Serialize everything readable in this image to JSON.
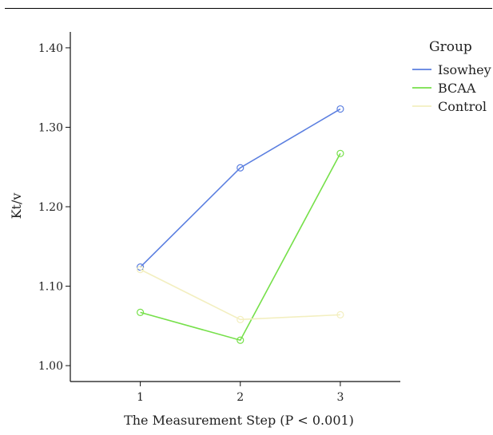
{
  "chart_data": {
    "type": "line",
    "x": [
      1,
      2,
      3
    ],
    "xlabel": "The Measurement Step (P < 0.001)",
    "ylabel": "Kt/v",
    "xlim": [
      0.3,
      3.6
    ],
    "ylim": [
      0.98,
      1.42
    ],
    "yticks": [
      "1.00",
      "1.10",
      "1.20",
      "1.30",
      "1.40"
    ],
    "ytick_values": [
      1.0,
      1.1,
      1.2,
      1.3,
      1.4
    ],
    "xticks": [
      "1",
      "2",
      "3"
    ],
    "grid": false,
    "legend": {
      "title": "Group",
      "placement": "top-right"
    },
    "series": [
      {
        "name": "Isowhey",
        "color": "#5b7fe0",
        "values": [
          1.124,
          1.249,
          1.323
        ]
      },
      {
        "name": "BCAA",
        "color": "#76e04a",
        "values": [
          1.067,
          1.032,
          1.267
        ]
      },
      {
        "name": "Control",
        "color": "#f3efc0",
        "values": [
          1.121,
          1.058,
          1.064
        ]
      }
    ]
  }
}
